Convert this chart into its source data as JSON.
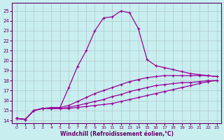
{
  "xlabel": "Windchill (Refroidissement éolien,°C)",
  "bg_color": "#c8eef0",
  "grid_color": "#b0c8c8",
  "line_color": "#990099",
  "xlim_min": -0.5,
  "xlim_max": 23.5,
  "ylim_min": 13.7,
  "ylim_max": 25.8,
  "yticks": [
    14,
    15,
    16,
    17,
    18,
    19,
    20,
    21,
    22,
    23,
    24,
    25
  ],
  "xticks": [
    0,
    1,
    2,
    3,
    4,
    5,
    6,
    7,
    8,
    9,
    10,
    11,
    12,
    13,
    14,
    15,
    16,
    17,
    18,
    19,
    20,
    21,
    22,
    23
  ],
  "lines": [
    {
      "x": [
        0,
        1,
        2,
        3,
        4,
        5,
        6,
        7,
        8,
        9,
        10,
        11,
        12,
        13,
        14,
        15,
        16,
        17,
        18,
        19,
        20,
        21,
        22,
        23
      ],
      "y": [
        14.2,
        14.1,
        15.0,
        15.2,
        15.3,
        15.3,
        17.3,
        19.4,
        21.0,
        23.0,
        24.3,
        24.4,
        25.0,
        24.8,
        23.2,
        20.1,
        19.5,
        19.3,
        19.1,
        18.9,
        18.7,
        18.6,
        18.5,
        18.4
      ]
    },
    {
      "x": [
        0,
        1,
        2,
        3,
        4,
        5,
        6,
        7,
        8,
        9,
        10,
        11,
        12,
        13,
        14,
        15,
        16,
        17,
        18,
        19,
        20,
        21,
        22,
        23
      ],
      "y": [
        14.2,
        14.1,
        15.0,
        15.2,
        15.2,
        15.3,
        15.5,
        15.9,
        16.3,
        16.7,
        17.0,
        17.3,
        17.6,
        17.9,
        18.1,
        18.3,
        18.4,
        18.5,
        18.5,
        18.5,
        18.5,
        18.5,
        18.5,
        18.4
      ]
    },
    {
      "x": [
        0,
        1,
        2,
        3,
        4,
        5,
        6,
        7,
        8,
        9,
        10,
        11,
        12,
        13,
        14,
        15,
        16,
        17,
        18,
        19,
        20,
        21,
        22,
        23
      ],
      "y": [
        14.2,
        14.1,
        15.0,
        15.2,
        15.2,
        15.2,
        15.3,
        15.5,
        15.7,
        15.9,
        16.1,
        16.4,
        16.6,
        16.9,
        17.1,
        17.3,
        17.5,
        17.6,
        17.7,
        17.8,
        17.8,
        17.9,
        18.0,
        18.0
      ]
    },
    {
      "x": [
        0,
        1,
        2,
        3,
        4,
        5,
        6,
        7,
        8,
        9,
        10,
        11,
        12,
        13,
        14,
        15,
        16,
        17,
        18,
        19,
        20,
        21,
        22,
        23
      ],
      "y": [
        14.2,
        14.1,
        15.0,
        15.2,
        15.2,
        15.2,
        15.2,
        15.3,
        15.4,
        15.5,
        15.6,
        15.7,
        15.9,
        16.1,
        16.3,
        16.5,
        16.7,
        16.9,
        17.1,
        17.3,
        17.5,
        17.7,
        17.9,
        18.0
      ]
    }
  ]
}
